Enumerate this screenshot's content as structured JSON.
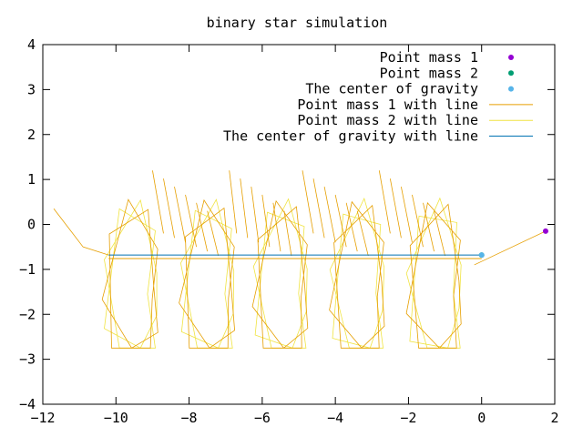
{
  "chart_data": {
    "type": "line",
    "title": "binary star simulation",
    "xlabel": "",
    "ylabel": "",
    "xlim": [
      -12,
      2
    ],
    "ylim": [
      -4,
      4
    ],
    "x_ticks": [
      -12,
      -10,
      -8,
      -6,
      -4,
      -2,
      0,
      2
    ],
    "y_ticks": [
      -4,
      -3,
      -2,
      -1,
      0,
      1,
      2,
      3,
      4
    ],
    "x_tick_labels": [
      "−12",
      "−10",
      "−8",
      "−6",
      "−4",
      "−2",
      "0",
      "2"
    ],
    "y_tick_labels": [
      "−4",
      "−3",
      "−2",
      "−1",
      "0",
      "1",
      "2",
      "3",
      "4"
    ],
    "grid": false,
    "legend_position": "top-right",
    "legend": [
      {
        "label": "Point mass 1",
        "kind": "point",
        "color": "#9400d3"
      },
      {
        "label": "Point mass 2",
        "kind": "point",
        "color": "#009e73"
      },
      {
        "label": "The center of gravity",
        "kind": "point",
        "color": "#56b4e9"
      },
      {
        "label": "Point mass 1 with line",
        "kind": "line",
        "color": "#e69f00"
      },
      {
        "label": "Point mass 2 with line",
        "kind": "line",
        "color": "#f0e442"
      },
      {
        "label": "The center of gravity with line",
        "kind": "line",
        "color": "#0072b2"
      }
    ],
    "center_of_gravity": {
      "y": -0.68,
      "x_start": -10.2,
      "x_end": 0
    },
    "loops_centers_x": [
      -9.2,
      -7.1,
      -5.1,
      -3.0,
      -0.9
    ],
    "loops_center_y": -1.55,
    "final_points": [
      {
        "series": "Point mass 1",
        "x": 1.75,
        "y": -0.15
      },
      {
        "series": "Point mass 2",
        "x": 0.0,
        "y": -0.68
      },
      {
        "series": "The center of gravity",
        "x": 0.0,
        "y": -0.68
      }
    ]
  }
}
